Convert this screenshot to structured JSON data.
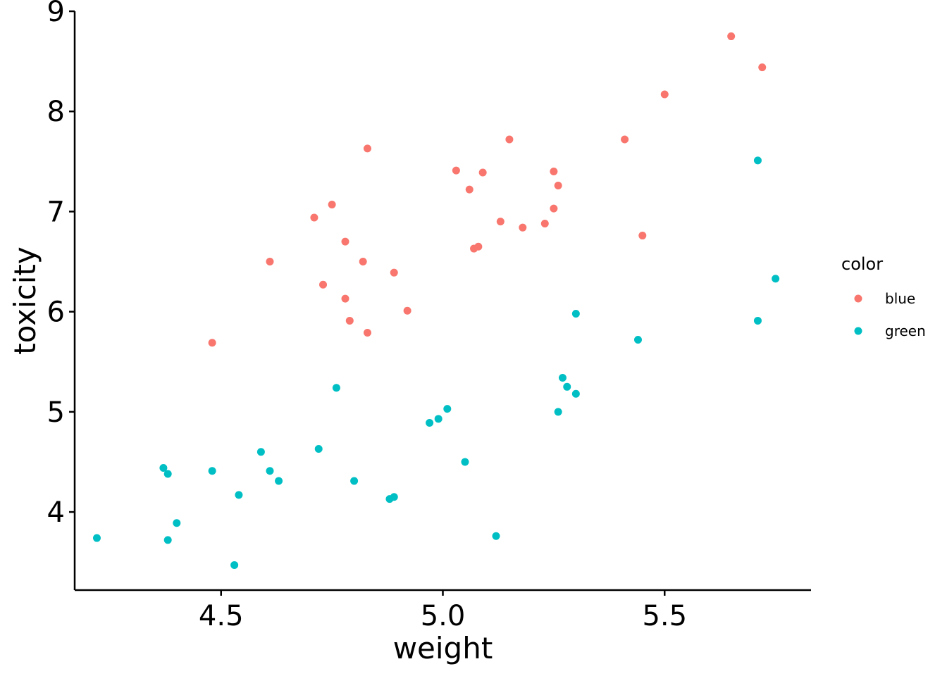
{
  "chart_data": {
    "type": "scatter",
    "xlabel": "weight",
    "ylabel": "toxicity",
    "xlim": [
      4.17,
      5.83
    ],
    "ylim": [
      3.22,
      9.0
    ],
    "xticks": [
      "4.5",
      "5.0",
      "5.5"
    ],
    "yticks": [
      "4",
      "5",
      "6",
      "7",
      "8",
      "9"
    ],
    "grid": false,
    "legend": {
      "title": "color",
      "placement": "right"
    },
    "series": [
      {
        "name": "blue",
        "color": "#F8766D",
        "points": [
          [
            4.48,
            5.69
          ],
          [
            4.61,
            6.5
          ],
          [
            4.71,
            6.94
          ],
          [
            4.73,
            6.27
          ],
          [
            4.75,
            7.07
          ],
          [
            4.78,
            6.7
          ],
          [
            4.78,
            6.13
          ],
          [
            4.79,
            5.91
          ],
          [
            4.82,
            6.5
          ],
          [
            4.83,
            7.63
          ],
          [
            4.83,
            5.79
          ],
          [
            4.89,
            6.39
          ],
          [
            4.92,
            6.01
          ],
          [
            5.03,
            7.41
          ],
          [
            5.06,
            7.22
          ],
          [
            5.07,
            6.63
          ],
          [
            5.08,
            6.65
          ],
          [
            5.09,
            7.39
          ],
          [
            5.13,
            6.9
          ],
          [
            5.15,
            7.72
          ],
          [
            5.18,
            6.84
          ],
          [
            5.23,
            6.88
          ],
          [
            5.25,
            7.4
          ],
          [
            5.25,
            7.03
          ],
          [
            5.26,
            7.26
          ],
          [
            5.41,
            7.72
          ],
          [
            5.45,
            6.76
          ],
          [
            5.5,
            8.17
          ],
          [
            5.65,
            8.75
          ],
          [
            5.72,
            8.44
          ]
        ]
      },
      {
        "name": "green",
        "color": "#00BFC4",
        "points": [
          [
            4.22,
            3.74
          ],
          [
            4.37,
            4.44
          ],
          [
            4.38,
            4.38
          ],
          [
            4.38,
            3.72
          ],
          [
            4.4,
            3.89
          ],
          [
            4.48,
            4.41
          ],
          [
            4.53,
            3.47
          ],
          [
            4.54,
            4.17
          ],
          [
            4.59,
            4.6
          ],
          [
            4.61,
            4.41
          ],
          [
            4.63,
            4.31
          ],
          [
            4.72,
            4.63
          ],
          [
            4.76,
            5.24
          ],
          [
            4.8,
            4.31
          ],
          [
            4.88,
            4.13
          ],
          [
            4.89,
            4.15
          ],
          [
            4.97,
            4.89
          ],
          [
            4.99,
            4.93
          ],
          [
            5.01,
            5.03
          ],
          [
            5.05,
            4.5
          ],
          [
            5.12,
            3.76
          ],
          [
            5.26,
            5.0
          ],
          [
            5.27,
            5.34
          ],
          [
            5.28,
            5.25
          ],
          [
            5.3,
            5.18
          ],
          [
            5.3,
            5.98
          ],
          [
            5.44,
            5.72
          ],
          [
            5.71,
            7.51
          ],
          [
            5.71,
            5.91
          ],
          [
            5.75,
            6.33
          ]
        ]
      }
    ]
  }
}
